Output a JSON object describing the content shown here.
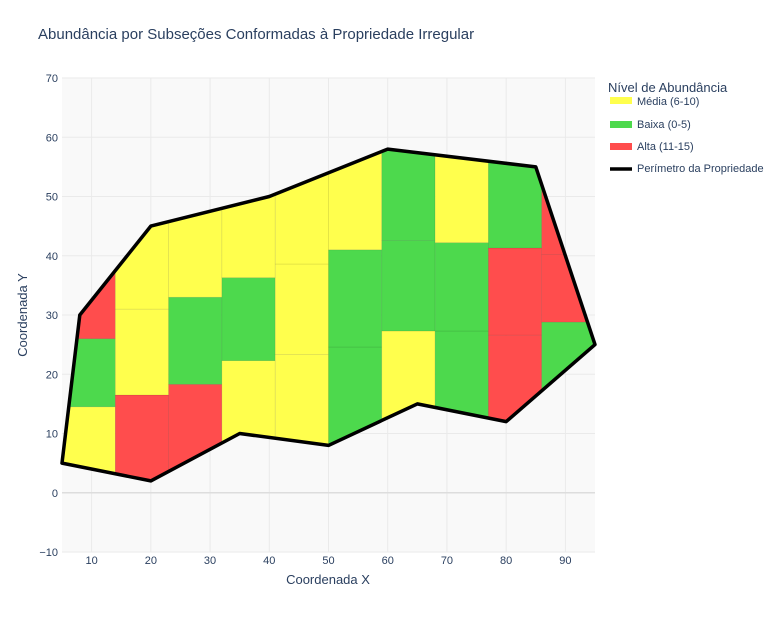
{
  "chart_data": {
    "type": "heatmap",
    "title": "Abundância por Subseções Conformadas à Propriedade Irregular",
    "xlabel": "Coordenada X",
    "ylabel": "Coordenada Y",
    "xlim": [
      5,
      95
    ],
    "ylim": [
      -10,
      70
    ],
    "x_ticks": [
      10,
      20,
      30,
      40,
      50,
      60,
      70,
      80,
      90
    ],
    "y_ticks": [
      -10,
      0,
      10,
      20,
      30,
      40,
      50,
      60,
      70
    ],
    "x_tick_labels": [
      "10",
      "20",
      "30",
      "40",
      "50",
      "60",
      "70",
      "80",
      "90"
    ],
    "y_tick_labels": [
      "−10",
      "0",
      "10",
      "20",
      "30",
      "40",
      "50",
      "60",
      "70"
    ],
    "legend_title": "Nível de Abundância",
    "legend": [
      {
        "key": "media",
        "label": "Média (6-10)",
        "color": "#ffff4d"
      },
      {
        "key": "baixa",
        "label": "Baixa (0-5)",
        "color": "#4dd94d"
      },
      {
        "key": "alta",
        "label": "Alta (11-15)",
        "color": "#ff4d4d"
      },
      {
        "key": "perimetro",
        "label": "Perímetro da Propriedade",
        "color": "#000000"
      }
    ],
    "colors": {
      "media": "#ffff4d",
      "baixa": "#4dd94d",
      "alta": "#ff4d4d"
    },
    "perimeter": [
      [
        5,
        5
      ],
      [
        8,
        30
      ],
      [
        20,
        45
      ],
      [
        40,
        50
      ],
      [
        60,
        58
      ],
      [
        85,
        55
      ],
      [
        95,
        25
      ],
      [
        80,
        12
      ],
      [
        65,
        15
      ],
      [
        50,
        8
      ],
      [
        35,
        10
      ],
      [
        20,
        2
      ],
      [
        5,
        5
      ]
    ],
    "columns": [
      {
        "x0": 5,
        "x1": 14,
        "cells": [
          {
            "y0": -10,
            "y1": 14.5,
            "level": "media"
          },
          {
            "y0": 14.5,
            "y1": 26,
            "level": "baixa"
          },
          {
            "y0": 26,
            "y1": 70,
            "level": "alta"
          }
        ]
      },
      {
        "x0": 14,
        "x1": 23,
        "cells": [
          {
            "y0": -10,
            "y1": 16.5,
            "level": "alta"
          },
          {
            "y0": 16.5,
            "y1": 31,
            "level": "media"
          },
          {
            "y0": 31,
            "y1": 70,
            "level": "media"
          }
        ]
      },
      {
        "x0": 23,
        "x1": 32,
        "cells": [
          {
            "y0": -10,
            "y1": 18.3,
            "level": "alta"
          },
          {
            "y0": 18.3,
            "y1": 33,
            "level": "baixa"
          },
          {
            "y0": 33,
            "y1": 70,
            "level": "media"
          }
        ]
      },
      {
        "x0": 32,
        "x1": 41,
        "cells": [
          {
            "y0": -10,
            "y1": 22.3,
            "level": "media"
          },
          {
            "y0": 22.3,
            "y1": 36.3,
            "level": "baixa"
          },
          {
            "y0": 36.3,
            "y1": 70,
            "level": "media"
          }
        ]
      },
      {
        "x0": 41,
        "x1": 50,
        "cells": [
          {
            "y0": -10,
            "y1": 23.3,
            "level": "media"
          },
          {
            "y0": 23.3,
            "y1": 38.6,
            "level": "media"
          },
          {
            "y0": 38.6,
            "y1": 70,
            "level": "media"
          }
        ]
      },
      {
        "x0": 50,
        "x1": 59,
        "cells": [
          {
            "y0": -10,
            "y1": 24.6,
            "level": "baixa"
          },
          {
            "y0": 24.6,
            "y1": 41,
            "level": "baixa"
          },
          {
            "y0": 41,
            "y1": 70,
            "level": "media"
          }
        ]
      },
      {
        "x0": 59,
        "x1": 68,
        "cells": [
          {
            "y0": -10,
            "y1": 27.3,
            "level": "media"
          },
          {
            "y0": 27.3,
            "y1": 42.6,
            "level": "baixa"
          },
          {
            "y0": 42.6,
            "y1": 70,
            "level": "baixa"
          }
        ]
      },
      {
        "x0": 68,
        "x1": 77,
        "cells": [
          {
            "y0": -10,
            "y1": 27.3,
            "level": "baixa"
          },
          {
            "y0": 27.3,
            "y1": 42.2,
            "level": "baixa"
          },
          {
            "y0": 42.2,
            "y1": 70,
            "level": "media"
          }
        ]
      },
      {
        "x0": 77,
        "x1": 86,
        "cells": [
          {
            "y0": -10,
            "y1": 26.6,
            "level": "alta"
          },
          {
            "y0": 26.6,
            "y1": 41.3,
            "level": "alta"
          },
          {
            "y0": 41.3,
            "y1": 70,
            "level": "baixa"
          }
        ]
      },
      {
        "x0": 86,
        "x1": 95,
        "cells": [
          {
            "y0": -10,
            "y1": 28.8,
            "level": "baixa"
          },
          {
            "y0": 28.8,
            "y1": 40.2,
            "level": "alta"
          },
          {
            "y0": 40.2,
            "y1": 70,
            "level": "alta"
          }
        ]
      }
    ]
  }
}
